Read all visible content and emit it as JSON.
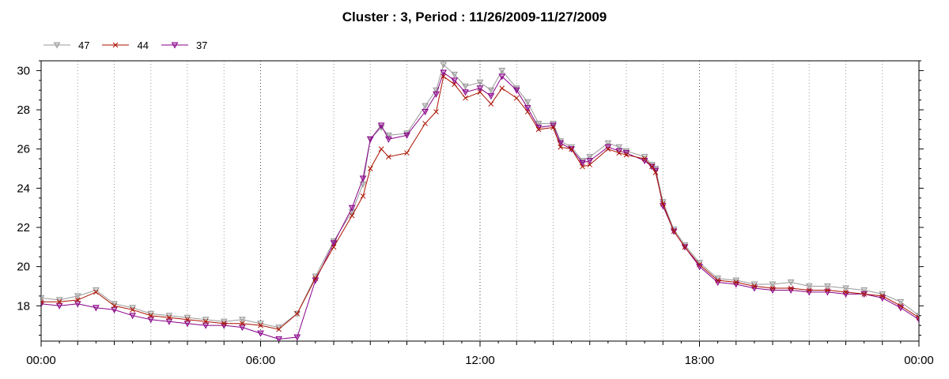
{
  "chart_data": {
    "type": "line",
    "title": "Cluster : 3, Period : 11/26/2009-11/27/2009",
    "xlabel": "",
    "ylabel": "",
    "x_tick_labels": [
      "00:00",
      "06:00",
      "12:00",
      "18:00",
      "00:00"
    ],
    "x_range_hours": [
      0,
      24
    ],
    "ylim": [
      16.2,
      30.5
    ],
    "y_ticks": [
      18,
      20,
      22,
      24,
      26,
      28,
      30
    ],
    "grid": "vertical dotted",
    "legend_position": "top-left",
    "series": [
      {
        "name": "47",
        "color": "#999999",
        "marker": "triangle-down",
        "points": [
          [
            0,
            18.4
          ],
          [
            0.5,
            18.3
          ],
          [
            1,
            18.5
          ],
          [
            1.5,
            18.8
          ],
          [
            2,
            18.1
          ],
          [
            2.5,
            17.9
          ],
          [
            3,
            17.6
          ],
          [
            3.5,
            17.5
          ],
          [
            4,
            17.4
          ],
          [
            4.5,
            17.3
          ],
          [
            5,
            17.2
          ],
          [
            5.5,
            17.3
          ],
          [
            6,
            17.1
          ],
          [
            6.5,
            16.9
          ],
          [
            7,
            17.6
          ],
          [
            7.5,
            19.5
          ],
          [
            8,
            21.3
          ],
          [
            8.5,
            22.8
          ],
          [
            8.8,
            24.2
          ],
          [
            9,
            26.5
          ],
          [
            9.3,
            27.1
          ],
          [
            9.5,
            26.7
          ],
          [
            10,
            26.8
          ],
          [
            10.5,
            28.2
          ],
          [
            10.8,
            29.0
          ],
          [
            11,
            30.3
          ],
          [
            11.3,
            29.8
          ],
          [
            11.6,
            29.2
          ],
          [
            12,
            29.4
          ],
          [
            12.3,
            29.0
          ],
          [
            12.6,
            30.0
          ],
          [
            13,
            29.1
          ],
          [
            13.3,
            28.4
          ],
          [
            13.6,
            27.3
          ],
          [
            14,
            27.3
          ],
          [
            14.2,
            26.4
          ],
          [
            14.5,
            26.1
          ],
          [
            14.8,
            25.4
          ],
          [
            15,
            25.6
          ],
          [
            15.5,
            26.3
          ],
          [
            15.8,
            26.1
          ],
          [
            16,
            25.9
          ],
          [
            16.5,
            25.6
          ],
          [
            16.7,
            25.2
          ],
          [
            16.8,
            25.0
          ],
          [
            17,
            23.3
          ],
          [
            17.3,
            21.9
          ],
          [
            17.6,
            21.1
          ],
          [
            18,
            20.2
          ],
          [
            18.5,
            19.4
          ],
          [
            19,
            19.3
          ],
          [
            19.5,
            19.1
          ],
          [
            20,
            19.1
          ],
          [
            20.5,
            19.2
          ],
          [
            21,
            19.0
          ],
          [
            21.5,
            19.0
          ],
          [
            22,
            18.9
          ],
          [
            22.5,
            18.8
          ],
          [
            23,
            18.6
          ],
          [
            23.5,
            18.2
          ],
          [
            24,
            17.5
          ]
        ]
      },
      {
        "name": "44",
        "color": "#aa1100",
        "marker": "x",
        "points": [
          [
            0,
            18.2
          ],
          [
            0.5,
            18.2
          ],
          [
            1,
            18.3
          ],
          [
            1.5,
            18.7
          ],
          [
            2,
            18.0
          ],
          [
            2.5,
            17.8
          ],
          [
            3,
            17.5
          ],
          [
            3.5,
            17.4
          ],
          [
            4,
            17.3
          ],
          [
            4.5,
            17.2
          ],
          [
            5,
            17.1
          ],
          [
            5.5,
            17.1
          ],
          [
            6,
            17.0
          ],
          [
            6.5,
            16.8
          ],
          [
            7,
            17.6
          ],
          [
            7.5,
            19.4
          ],
          [
            8,
            21.0
          ],
          [
            8.5,
            22.6
          ],
          [
            8.8,
            23.6
          ],
          [
            9,
            25.0
          ],
          [
            9.3,
            26.0
          ],
          [
            9.5,
            25.6
          ],
          [
            10,
            25.8
          ],
          [
            10.5,
            27.3
          ],
          [
            10.8,
            27.9
          ],
          [
            11,
            29.7
          ],
          [
            11.3,
            29.3
          ],
          [
            11.6,
            28.6
          ],
          [
            12,
            28.9
          ],
          [
            12.3,
            28.3
          ],
          [
            12.6,
            29.1
          ],
          [
            13,
            28.6
          ],
          [
            13.3,
            27.9
          ],
          [
            13.6,
            27.0
          ],
          [
            14,
            27.1
          ],
          [
            14.2,
            26.1
          ],
          [
            14.5,
            26.0
          ],
          [
            14.8,
            25.1
          ],
          [
            15,
            25.2
          ],
          [
            15.5,
            26.0
          ],
          [
            15.8,
            25.8
          ],
          [
            16,
            25.7
          ],
          [
            16.5,
            25.5
          ],
          [
            16.7,
            25.1
          ],
          [
            16.8,
            24.8
          ],
          [
            17,
            23.2
          ],
          [
            17.3,
            21.8
          ],
          [
            17.6,
            21.0
          ],
          [
            18,
            20.1
          ],
          [
            18.5,
            19.3
          ],
          [
            19,
            19.2
          ],
          [
            19.5,
            19.0
          ],
          [
            20,
            18.9
          ],
          [
            20.5,
            18.9
          ],
          [
            21,
            18.8
          ],
          [
            21.5,
            18.8
          ],
          [
            22,
            18.7
          ],
          [
            22.5,
            18.6
          ],
          [
            23,
            18.5
          ],
          [
            23.5,
            18.0
          ],
          [
            24,
            17.4
          ]
        ]
      },
      {
        "name": "37",
        "color": "#880088",
        "marker": "triangle-down",
        "points": [
          [
            0,
            18.1
          ],
          [
            0.5,
            18.0
          ],
          [
            1,
            18.1
          ],
          [
            1.5,
            17.9
          ],
          [
            2,
            17.8
          ],
          [
            2.5,
            17.5
          ],
          [
            3,
            17.3
          ],
          [
            3.5,
            17.2
          ],
          [
            4,
            17.1
          ],
          [
            4.5,
            17.0
          ],
          [
            5,
            17.0
          ],
          [
            5.5,
            16.9
          ],
          [
            6,
            16.6
          ],
          [
            6.5,
            16.3
          ],
          [
            7,
            16.4
          ],
          [
            7.5,
            19.3
          ],
          [
            8,
            21.2
          ],
          [
            8.5,
            23.0
          ],
          [
            8.8,
            24.5
          ],
          [
            9,
            26.5
          ],
          [
            9.3,
            27.2
          ],
          [
            9.5,
            26.5
          ],
          [
            10,
            26.7
          ],
          [
            10.5,
            27.9
          ],
          [
            10.8,
            28.8
          ],
          [
            11,
            29.9
          ],
          [
            11.3,
            29.5
          ],
          [
            11.6,
            28.9
          ],
          [
            12,
            29.1
          ],
          [
            12.3,
            28.7
          ],
          [
            12.6,
            29.7
          ],
          [
            13,
            29.0
          ],
          [
            13.3,
            28.1
          ],
          [
            13.6,
            27.1
          ],
          [
            14,
            27.2
          ],
          [
            14.2,
            26.3
          ],
          [
            14.5,
            26.0
          ],
          [
            14.8,
            25.3
          ],
          [
            15,
            25.4
          ],
          [
            15.5,
            26.1
          ],
          [
            15.8,
            25.9
          ],
          [
            16,
            25.8
          ],
          [
            16.5,
            25.4
          ],
          [
            16.7,
            25.1
          ],
          [
            16.8,
            24.9
          ],
          [
            17,
            23.1
          ],
          [
            17.3,
            21.8
          ],
          [
            17.6,
            21.0
          ],
          [
            18,
            20.0
          ],
          [
            18.5,
            19.2
          ],
          [
            19,
            19.1
          ],
          [
            19.5,
            18.9
          ],
          [
            20,
            18.8
          ],
          [
            20.5,
            18.8
          ],
          [
            21,
            18.7
          ],
          [
            21.5,
            18.7
          ],
          [
            22,
            18.6
          ],
          [
            22.5,
            18.6
          ],
          [
            23,
            18.4
          ],
          [
            23.5,
            17.9
          ],
          [
            24,
            17.3
          ]
        ]
      }
    ]
  }
}
